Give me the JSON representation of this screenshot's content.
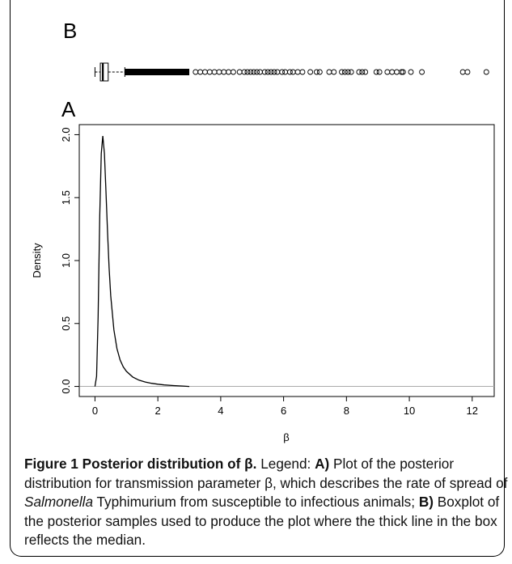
{
  "chart_data": [
    {
      "type": "box",
      "panel_label": "B",
      "orientation": "horizontal",
      "shared_x_axis_with": "A",
      "whisker_low": 0.0,
      "q1": 0.17,
      "median": 0.25,
      "q3": 0.42,
      "whisker_high": 0.95,
      "outliers_dense_range": [
        0.95,
        3.0
      ],
      "outliers": [
        3.2,
        3.35,
        3.5,
        3.65,
        3.8,
        3.95,
        4.1,
        4.25,
        4.4,
        4.6,
        4.75,
        4.85,
        4.95,
        5.05,
        5.15,
        5.25,
        5.4,
        5.5,
        5.6,
        5.7,
        5.8,
        5.95,
        6.05,
        6.2,
        6.3,
        6.45,
        6.6,
        6.85,
        7.05,
        7.15,
        7.45,
        7.6,
        7.85,
        7.95,
        8.05,
        8.15,
        8.4,
        8.5,
        8.6,
        8.95,
        9.05,
        9.3,
        9.45,
        9.6,
        9.75,
        9.8,
        10.05,
        10.4,
        11.7,
        11.85,
        12.45
      ]
    },
    {
      "type": "line",
      "panel_label": "A",
      "xlabel": "β",
      "ylabel": "Density",
      "xlim": [
        -0.5,
        12.7
      ],
      "ylim": [
        -0.08,
        2.08
      ],
      "xticks": [
        0,
        2,
        4,
        6,
        8,
        10,
        12
      ],
      "yticks": [
        0.0,
        0.5,
        1.0,
        1.5,
        2.0
      ],
      "xtick_labels": [
        "0",
        "2",
        "4",
        "6",
        "8",
        "10",
        "12"
      ],
      "ytick_labels": [
        "0.0",
        "0.5",
        "1.0",
        "1.5",
        "2.0"
      ],
      "baseline": 0.0,
      "grid": false,
      "series": [
        {
          "x": [
            0.0,
            0.05,
            0.1,
            0.15,
            0.2,
            0.25,
            0.3,
            0.35,
            0.4,
            0.45,
            0.5,
            0.6,
            0.7,
            0.8,
            0.9,
            1.0,
            1.2,
            1.4,
            1.6,
            1.8,
            2.0,
            2.2,
            2.5,
            2.8,
            3.0
          ],
          "y": [
            0.0,
            0.08,
            0.55,
            1.35,
            1.85,
            1.99,
            1.85,
            1.55,
            1.22,
            0.94,
            0.72,
            0.45,
            0.3,
            0.21,
            0.155,
            0.12,
            0.075,
            0.05,
            0.035,
            0.025,
            0.018,
            0.012,
            0.007,
            0.003,
            0.0
          ]
        }
      ]
    }
  ],
  "caption": {
    "lead": "Figure 1 Posterior distribution of β.",
    "legend_word": " Legend: ",
    "a_label": "A)",
    "a_text_1": " Plot of the posterior distribution for transmission parameter β, which describes the rate of spread of ",
    "a_organism": "Salmonella",
    "a_text_2": " Typhimurium from susceptible to infectious animals; ",
    "b_label": "B)",
    "b_text": " Boxplot of the posterior samples used to produce the plot where the thick line in the box reflects the median."
  }
}
